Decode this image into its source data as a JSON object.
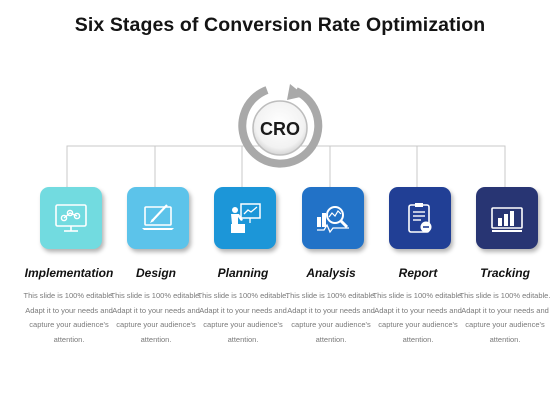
{
  "title": "Six Stages of Conversion Rate Optimization",
  "hub": {
    "label": "CRO"
  },
  "stages": [
    {
      "label": "Implementation",
      "icon": "monitor-network-icon",
      "color": "#72dbe0",
      "desc": "This slide is 100% editable. Adapt it to your needs and capture your audience's attention."
    },
    {
      "label": "Design",
      "icon": "laptop-pen-icon",
      "color": "#5cc3ea",
      "desc": "This slide is 100% editable. Adapt it to your needs and capture your audience's attention."
    },
    {
      "label": "Planning",
      "icon": "presenter-board-icon",
      "color": "#1c96d8",
      "desc": "This slide is 100% editable. Adapt it to your needs and capture your audience's attention."
    },
    {
      "label": "Analysis",
      "icon": "magnifier-chart-icon",
      "color": "#2272c7",
      "desc": "This slide is 100% editable. Adapt it to your needs and capture your audience's attention."
    },
    {
      "label": "Report",
      "icon": "clipboard-report-icon",
      "color": "#213f95",
      "desc": "This slide is 100% editable. Adapt it to your needs and capture your audience's attention."
    },
    {
      "label": "Tracking",
      "icon": "bar-chart-monitor-icon",
      "color": "#283573",
      "desc": "This slide is 100% editable. Adapt it to your needs and capture your audience's attention."
    }
  ]
}
